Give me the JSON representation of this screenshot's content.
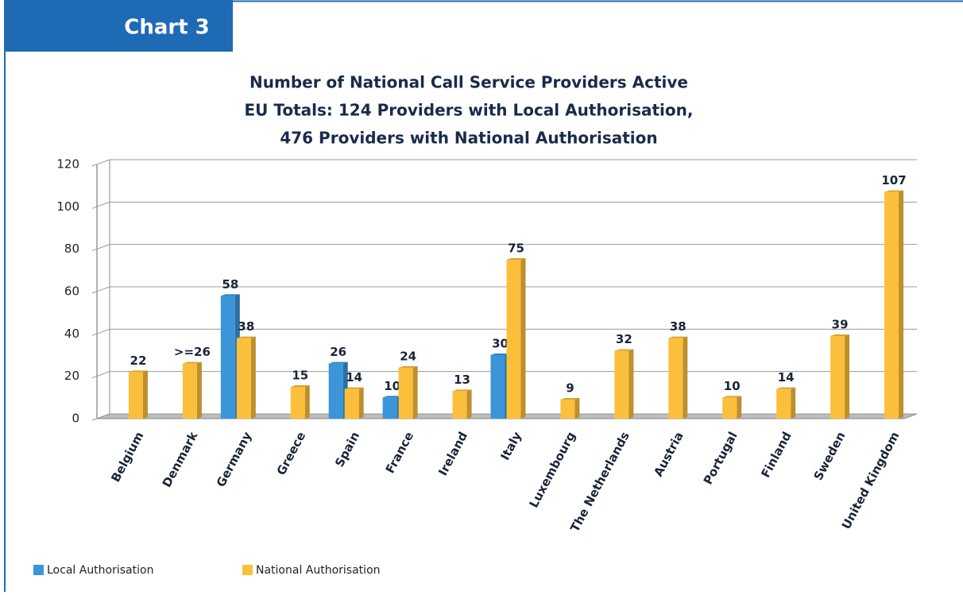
{
  "header": "Chart 3",
  "chart_data": {
    "type": "bar",
    "title": [
      "Number of National Call Service Providers Active",
      "EU Totals: 124 Providers with Local Authorisation,",
      "476 Providers with National Authorisation"
    ],
    "categories": [
      "Belgium",
      "Denmark",
      "Germany",
      "Greece",
      "Spain",
      "France",
      "Ireland",
      "Italy",
      "Luxembourg",
      "The Netherlands",
      "Austria",
      "Portugal",
      "Finland",
      "Sweden",
      "United Kingdom"
    ],
    "series": [
      {
        "name": "Local Authorisation",
        "color": "#3b95d8",
        "values": [
          null,
          null,
          58,
          null,
          26,
          10,
          null,
          30,
          null,
          null,
          null,
          null,
          null,
          null,
          null
        ]
      },
      {
        "name": "National Authorisation",
        "color": "#fcbf3c",
        "values": [
          22,
          26,
          38,
          15,
          14,
          24,
          13,
          75,
          9,
          32,
          38,
          10,
          14,
          39,
          107
        ],
        "value_labels": [
          "22",
          ">=26",
          "38",
          "15",
          "14",
          "24",
          "13",
          "75",
          "9",
          "32",
          "38",
          "10",
          "14",
          "39",
          "107"
        ]
      }
    ],
    "ylim": [
      0,
      120
    ],
    "yticks": [
      0,
      20,
      40,
      60,
      80,
      100,
      120
    ],
    "grid": true,
    "legend": "bottom-left"
  }
}
